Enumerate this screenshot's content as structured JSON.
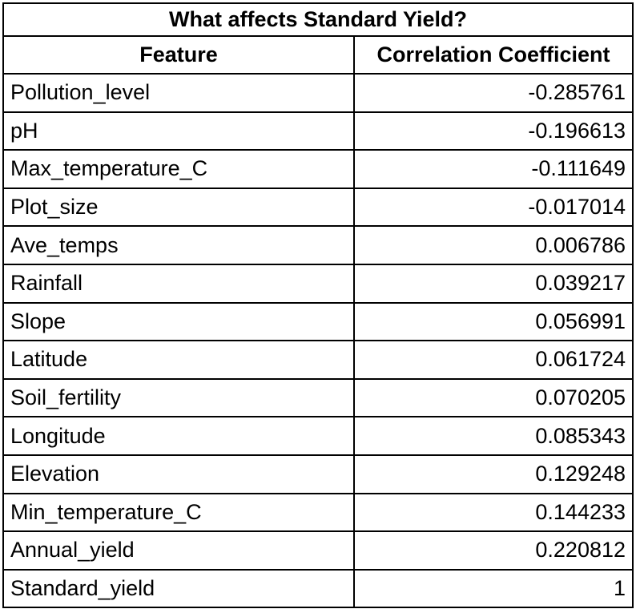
{
  "table": {
    "title": "What affects Standard Yield?",
    "columns": [
      "Feature",
      "Correlation Coefficient"
    ],
    "rows": [
      {
        "feature": "Pollution_level",
        "value": "-0.285761"
      },
      {
        "feature": "pH",
        "value": "-0.196613"
      },
      {
        "feature": "Max_temperature_C",
        "value": "-0.111649"
      },
      {
        "feature": "Plot_size",
        "value": "-0.017014"
      },
      {
        "feature": "Ave_temps",
        "value": "0.006786"
      },
      {
        "feature": "Rainfall",
        "value": "0.039217"
      },
      {
        "feature": "Slope",
        "value": "0.056991"
      },
      {
        "feature": "Latitude",
        "value": "0.061724"
      },
      {
        "feature": "Soil_fertility",
        "value": "0.070205"
      },
      {
        "feature": "Longitude",
        "value": "0.085343"
      },
      {
        "feature": "Elevation",
        "value": "0.129248"
      },
      {
        "feature": "Min_temperature_C",
        "value": "0.144233"
      },
      {
        "feature": "Annual_yield",
        "value": "0.220812"
      },
      {
        "feature": "Standard_yield",
        "value": "1"
      }
    ]
  }
}
